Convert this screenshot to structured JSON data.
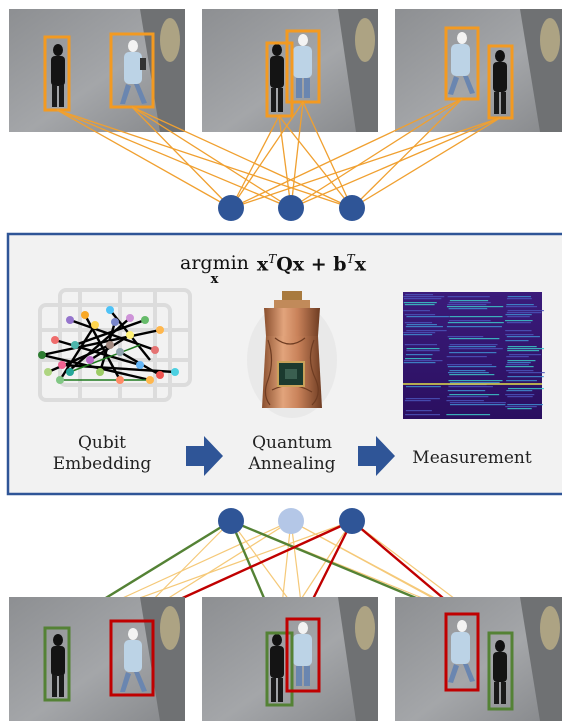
{
  "formula": {
    "op": "argmin",
    "subscript": "x",
    "expression": "x",
    "t1": "T",
    "q": "Qx + b",
    "t2": "T",
    "tail": "x"
  },
  "stages": {
    "embedding_line1": "Qubit",
    "embedding_line2": "Embedding",
    "annealing_line1": "Quantum",
    "annealing_line2": "Annealing",
    "measurement": "Measurement"
  },
  "colors": {
    "node": "#2f5597",
    "node_inactive": "#b4c7e7",
    "candidate_edge": "#f0a030",
    "weak_edge": "#f5c979",
    "match_green": "#548235",
    "match_red": "#c00000",
    "box_orange": "#f39a21",
    "panel_border": "#2f5597",
    "panel_fill": "#f2f2f2",
    "arrow": "#2f5597"
  }
}
